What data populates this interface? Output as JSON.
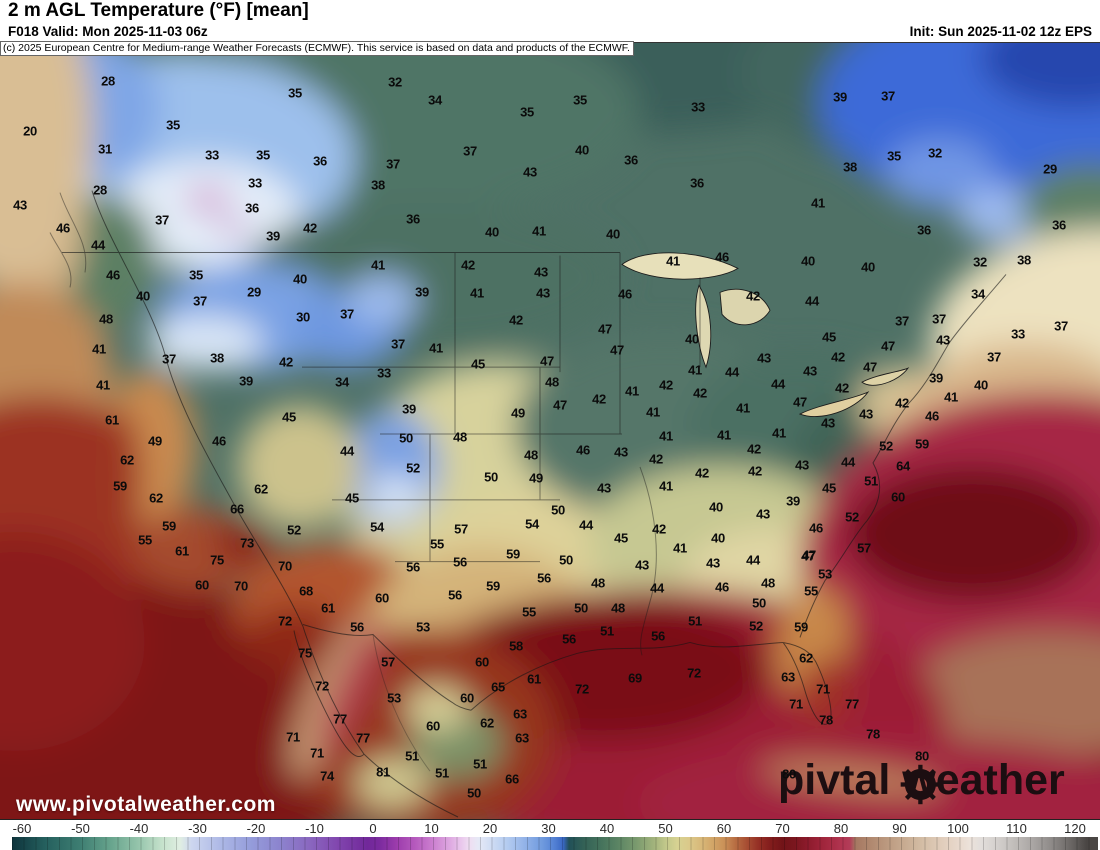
{
  "header": {
    "title": "2 m AGL Temperature (°F) [mean]",
    "valid": "F018 Valid: Mon 2025-11-03 06z",
    "init": "Init: Sun 2025-11-02 12z EPS",
    "copyright": "(c) 2025 European Centre for Medium-range Weather Forecasts (ECMWF). This service is based on data and products of the ECMWF."
  },
  "watermarks": {
    "site": "www.pivotalweather.com",
    "logo_pre": "piv",
    "logo_post": "tal weather"
  },
  "colorbar": {
    "unit": "°F",
    "ticks": [
      -60,
      -50,
      -40,
      -30,
      -20,
      -10,
      0,
      10,
      20,
      30,
      40,
      50,
      60,
      70,
      80,
      90,
      100,
      110,
      120
    ],
    "palette": [
      {
        "t": -64,
        "c": "#0e343c"
      },
      {
        "t": -56,
        "c": "#25605e"
      },
      {
        "t": -50,
        "c": "#3e7e72"
      },
      {
        "t": -45,
        "c": "#66a38c"
      },
      {
        "t": -40,
        "c": "#96c5ac"
      },
      {
        "t": -36,
        "c": "#c6e2cc"
      },
      {
        "t": -33,
        "c": "#e0eee2"
      },
      {
        "t": -31,
        "c": "#cdd6ef"
      },
      {
        "t": -26,
        "c": "#adb8e6"
      },
      {
        "t": -21,
        "c": "#959ddb"
      },
      {
        "t": -16,
        "c": "#8c84ce"
      },
      {
        "t": -11,
        "c": "#8a68c0"
      },
      {
        "t": -6,
        "c": "#8146ae"
      },
      {
        "t": -1,
        "c": "#71289a"
      },
      {
        "t": 1,
        "c": "#7a2a9e"
      },
      {
        "t": 4,
        "c": "#9c3cac"
      },
      {
        "t": 7,
        "c": "#b458bc"
      },
      {
        "t": 10,
        "c": "#ca7cce"
      },
      {
        "t": 13,
        "c": "#dda6e0"
      },
      {
        "t": 15,
        "c": "#e9c6ec"
      },
      {
        "t": 16.5,
        "c": "#efdef2"
      },
      {
        "t": 18,
        "c": "#e6e9f6"
      },
      {
        "t": 20,
        "c": "#d2def4"
      },
      {
        "t": 23,
        "c": "#b3cbf0"
      },
      {
        "t": 26,
        "c": "#92b2e8"
      },
      {
        "t": 29,
        "c": "#6f9ade"
      },
      {
        "t": 31,
        "c": "#5381d4"
      },
      {
        "t": 32.5,
        "c": "#3a67c4"
      },
      {
        "t": 33.5,
        "c": "#215058"
      },
      {
        "t": 36,
        "c": "#336156"
      },
      {
        "t": 39,
        "c": "#45735c"
      },
      {
        "t": 42,
        "c": "#5c8564"
      },
      {
        "t": 45,
        "c": "#7a9a6e"
      },
      {
        "t": 48,
        "c": "#a2b37c"
      },
      {
        "t": 50,
        "c": "#c1c78a"
      },
      {
        "t": 52,
        "c": "#d7d292"
      },
      {
        "t": 54,
        "c": "#dbc98a"
      },
      {
        "t": 56,
        "c": "#d8b97a"
      },
      {
        "t": 58,
        "c": "#d2a668"
      },
      {
        "t": 60,
        "c": "#ca9158"
      },
      {
        "t": 62,
        "c": "#b76c42"
      },
      {
        "t": 64,
        "c": "#a64c32"
      },
      {
        "t": 66,
        "c": "#942e24"
      },
      {
        "t": 68,
        "c": "#821c1c"
      },
      {
        "t": 70,
        "c": "#721418"
      },
      {
        "t": 72,
        "c": "#7a161e"
      },
      {
        "t": 74,
        "c": "#8a1a2a"
      },
      {
        "t": 76,
        "c": "#9a2136"
      },
      {
        "t": 78,
        "c": "#a62a42"
      },
      {
        "t": 80,
        "c": "#b03450"
      },
      {
        "t": 81.5,
        "c": "#b23c58"
      },
      {
        "t": 82.5,
        "c": "#a67862"
      },
      {
        "t": 85,
        "c": "#b0886f"
      },
      {
        "t": 88,
        "c": "#bc9a80"
      },
      {
        "t": 91,
        "c": "#c8ac92"
      },
      {
        "t": 94,
        "c": "#d4bea6"
      },
      {
        "t": 97,
        "c": "#e0ccba"
      },
      {
        "t": 100,
        "c": "#e8d8cc"
      },
      {
        "t": 102,
        "c": "#ece2da"
      },
      {
        "t": 104,
        "c": "#e2dedb"
      },
      {
        "t": 107,
        "c": "#d2cecb"
      },
      {
        "t": 110,
        "c": "#bebab7"
      },
      {
        "t": 113,
        "c": "#a8a4a2"
      },
      {
        "t": 116,
        "c": "#8e8a88"
      },
      {
        "t": 119,
        "c": "#6e6a68"
      },
      {
        "t": 122,
        "c": "#4a4644"
      }
    ]
  },
  "map": {
    "stations": [
      [
        28,
        108,
        81
      ],
      [
        35,
        295,
        93
      ],
      [
        20,
        30,
        131
      ],
      [
        31,
        105,
        149
      ],
      [
        35,
        173,
        125
      ],
      [
        33,
        212,
        155
      ],
      [
        35,
        263,
        155
      ],
      [
        36,
        320,
        161
      ],
      [
        28,
        100,
        190
      ],
      [
        33,
        255,
        183
      ],
      [
        36,
        252,
        208
      ],
      [
        43,
        20,
        205
      ],
      [
        46,
        63,
        228
      ],
      [
        44,
        98,
        245
      ],
      [
        37,
        162,
        220
      ],
      [
        39,
        273,
        236
      ],
      [
        42,
        310,
        228
      ],
      [
        46,
        113,
        275
      ],
      [
        35,
        196,
        275
      ],
      [
        40,
        143,
        296
      ],
      [
        29,
        254,
        292
      ],
      [
        40,
        300,
        279
      ],
      [
        37,
        200,
        301
      ],
      [
        32,
        395,
        82
      ],
      [
        34,
        435,
        100
      ],
      [
        35,
        580,
        100
      ],
      [
        35,
        527,
        112
      ],
      [
        33,
        698,
        107
      ],
      [
        37,
        470,
        151
      ],
      [
        37,
        393,
        164
      ],
      [
        40,
        582,
        150
      ],
      [
        36,
        631,
        160
      ],
      [
        43,
        530,
        172
      ],
      [
        38,
        378,
        185
      ],
      [
        36,
        697,
        183
      ],
      [
        36,
        413,
        219
      ],
      [
        40,
        492,
        232
      ],
      [
        41,
        539,
        231
      ],
      [
        40,
        613,
        234
      ],
      [
        41,
        378,
        265
      ],
      [
        42,
        468,
        265
      ],
      [
        41,
        673,
        261
      ],
      [
        46,
        722,
        257
      ],
      [
        39,
        422,
        292
      ],
      [
        41,
        477,
        293
      ],
      [
        43,
        541,
        272
      ],
      [
        43,
        543,
        293
      ],
      [
        46,
        625,
        294
      ],
      [
        39,
        840,
        97
      ],
      [
        37,
        888,
        96
      ],
      [
        32,
        935,
        153
      ],
      [
        35,
        894,
        156
      ],
      [
        29,
        1050,
        169
      ],
      [
        38,
        850,
        167
      ],
      [
        41,
        818,
        203
      ],
      [
        36,
        924,
        230
      ],
      [
        36,
        1059,
        225
      ],
      [
        40,
        808,
        261
      ],
      [
        40,
        868,
        267
      ],
      [
        32,
        980,
        262
      ],
      [
        38,
        1024,
        260
      ],
      [
        34,
        978,
        294
      ],
      [
        44,
        812,
        301
      ],
      [
        42,
        753,
        296
      ],
      [
        48,
        106,
        319
      ],
      [
        30,
        303,
        317
      ],
      [
        37,
        347,
        314
      ],
      [
        41,
        99,
        349
      ],
      [
        37,
        169,
        359
      ],
      [
        38,
        217,
        358
      ],
      [
        42,
        286,
        362
      ],
      [
        39,
        246,
        381
      ],
      [
        34,
        342,
        382
      ],
      [
        41,
        103,
        385
      ],
      [
        61,
        112,
        420
      ],
      [
        45,
        289,
        417
      ],
      [
        49,
        155,
        441
      ],
      [
        46,
        219,
        441
      ],
      [
        44,
        347,
        451
      ],
      [
        62,
        127,
        460
      ],
      [
        59,
        120,
        486
      ],
      [
        62,
        261,
        489
      ],
      [
        62,
        156,
        498
      ],
      [
        45,
        352,
        498
      ],
      [
        66,
        237,
        509
      ],
      [
        59,
        169,
        526
      ],
      [
        52,
        294,
        530
      ],
      [
        55,
        145,
        540
      ],
      [
        61,
        182,
        551
      ],
      [
        73,
        247,
        543
      ],
      [
        42,
        516,
        320
      ],
      [
        47,
        605,
        329
      ],
      [
        40,
        692,
        339
      ],
      [
        37,
        398,
        344
      ],
      [
        41,
        436,
        348
      ],
      [
        47,
        617,
        350
      ],
      [
        45,
        478,
        364
      ],
      [
        47,
        547,
        361
      ],
      [
        33,
        384,
        373
      ],
      [
        41,
        695,
        370
      ],
      [
        44,
        732,
        372
      ],
      [
        48,
        552,
        382
      ],
      [
        42,
        666,
        385
      ],
      [
        41,
        632,
        391
      ],
      [
        42,
        700,
        393
      ],
      [
        42,
        599,
        399
      ],
      [
        47,
        560,
        405
      ],
      [
        39,
        409,
        409
      ],
      [
        41,
        653,
        412
      ],
      [
        49,
        518,
        413
      ],
      [
        50,
        406,
        438
      ],
      [
        48,
        460,
        437
      ],
      [
        41,
        666,
        436
      ],
      [
        41,
        724,
        435
      ],
      [
        46,
        583,
        450
      ],
      [
        48,
        531,
        455
      ],
      [
        43,
        621,
        452
      ],
      [
        42,
        656,
        459
      ],
      [
        52,
        413,
        468
      ],
      [
        42,
        702,
        473
      ],
      [
        50,
        491,
        477
      ],
      [
        49,
        536,
        478
      ],
      [
        41,
        666,
        486
      ],
      [
        43,
        604,
        488
      ],
      [
        40,
        716,
        507
      ],
      [
        50,
        558,
        510
      ],
      [
        54,
        377,
        527
      ],
      [
        57,
        461,
        529
      ],
      [
        54,
        532,
        524
      ],
      [
        44,
        586,
        525
      ],
      [
        45,
        621,
        538
      ],
      [
        42,
        659,
        529
      ],
      [
        40,
        718,
        538
      ],
      [
        55,
        437,
        544
      ],
      [
        41,
        680,
        548
      ],
      [
        37,
        902,
        321
      ],
      [
        37,
        939,
        319
      ],
      [
        33,
        1018,
        334
      ],
      [
        37,
        1061,
        326
      ],
      [
        45,
        829,
        337
      ],
      [
        43,
        943,
        340
      ],
      [
        47,
        888,
        346
      ],
      [
        42,
        838,
        357
      ],
      [
        37,
        994,
        357
      ],
      [
        43,
        764,
        358
      ],
      [
        47,
        870,
        367
      ],
      [
        43,
        810,
        371
      ],
      [
        39,
        936,
        378
      ],
      [
        44,
        778,
        384
      ],
      [
        40,
        981,
        385
      ],
      [
        42,
        842,
        388
      ],
      [
        41,
        951,
        397
      ],
      [
        47,
        800,
        402
      ],
      [
        41,
        743,
        408
      ],
      [
        42,
        902,
        403
      ],
      [
        46,
        932,
        416
      ],
      [
        43,
        866,
        414
      ],
      [
        43,
        828,
        423
      ],
      [
        41,
        779,
        433
      ],
      [
        59,
        922,
        444
      ],
      [
        42,
        754,
        449
      ],
      [
        52,
        886,
        446
      ],
      [
        44,
        848,
        462
      ],
      [
        64,
        903,
        466
      ],
      [
        42,
        755,
        471
      ],
      [
        43,
        802,
        465
      ],
      [
        51,
        871,
        481
      ],
      [
        45,
        829,
        488
      ],
      [
        39,
        793,
        501
      ],
      [
        60,
        898,
        497
      ],
      [
        43,
        763,
        514
      ],
      [
        52,
        852,
        517
      ],
      [
        46,
        816,
        528
      ],
      [
        57,
        864,
        548
      ],
      [
        47,
        809,
        555
      ],
      [
        75,
        217,
        560
      ],
      [
        70,
        285,
        566
      ],
      [
        60,
        202,
        585
      ],
      [
        70,
        241,
        586
      ],
      [
        68,
        306,
        591
      ],
      [
        61,
        328,
        608
      ],
      [
        56,
        357,
        627
      ],
      [
        72,
        285,
        621
      ],
      [
        75,
        305,
        653
      ],
      [
        72,
        322,
        686
      ],
      [
        77,
        340,
        719
      ],
      [
        71,
        293,
        737
      ],
      [
        77,
        363,
        738
      ],
      [
        71,
        317,
        753
      ],
      [
        74,
        327,
        776
      ],
      [
        56,
        413,
        567
      ],
      [
        56,
        460,
        562
      ],
      [
        59,
        513,
        554
      ],
      [
        50,
        566,
        560
      ],
      [
        56,
        544,
        578
      ],
      [
        43,
        642,
        565
      ],
      [
        43,
        713,
        563
      ],
      [
        59,
        493,
        586
      ],
      [
        48,
        598,
        583
      ],
      [
        44,
        657,
        588
      ],
      [
        46,
        722,
        587
      ],
      [
        60,
        382,
        598
      ],
      [
        56,
        455,
        595
      ],
      [
        50,
        581,
        608
      ],
      [
        48,
        618,
        608
      ],
      [
        53,
        423,
        627
      ],
      [
        55,
        529,
        612
      ],
      [
        51,
        607,
        631
      ],
      [
        51,
        695,
        621
      ],
      [
        56,
        569,
        639
      ],
      [
        56,
        658,
        636
      ],
      [
        58,
        516,
        646
      ],
      [
        57,
        388,
        662
      ],
      [
        60,
        482,
        662
      ],
      [
        69,
        635,
        678
      ],
      [
        72,
        694,
        673
      ],
      [
        61,
        534,
        679
      ],
      [
        65,
        498,
        687
      ],
      [
        72,
        582,
        689
      ],
      [
        53,
        394,
        698
      ],
      [
        60,
        467,
        698
      ],
      [
        63,
        520,
        714
      ],
      [
        60,
        433,
        726
      ],
      [
        62,
        487,
        723
      ],
      [
        63,
        522,
        738
      ],
      [
        51,
        412,
        756
      ],
      [
        51,
        480,
        764
      ],
      [
        51,
        442,
        773
      ],
      [
        81,
        383,
        772
      ],
      [
        66,
        512,
        779
      ],
      [
        50,
        474,
        793
      ],
      [
        44,
        753,
        560
      ],
      [
        47,
        808,
        556
      ],
      [
        53,
        825,
        574
      ],
      [
        48,
        768,
        583
      ],
      [
        55,
        811,
        591
      ],
      [
        50,
        759,
        603
      ],
      [
        52,
        756,
        626
      ],
      [
        59,
        801,
        627
      ],
      [
        62,
        806,
        658
      ],
      [
        63,
        788,
        677
      ],
      [
        71,
        823,
        689
      ],
      [
        71,
        796,
        704
      ],
      [
        77,
        852,
        704
      ],
      [
        78,
        826,
        720
      ],
      [
        78,
        873,
        734
      ],
      [
        80,
        922,
        756
      ],
      [
        80,
        789,
        774
      ]
    ]
  }
}
